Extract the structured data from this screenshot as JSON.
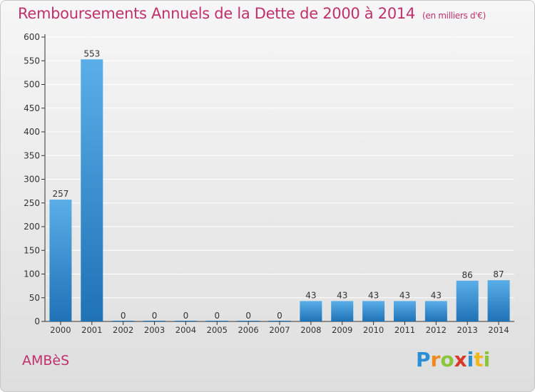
{
  "title": "Remboursements Annuels de la Dette de 2000 à 2014",
  "unit": "(en milliers d'€)",
  "commune": "AMBèS",
  "logo": {
    "text": "Proxiti",
    "letters": [
      {
        "char": "P",
        "color": "#2a8fd6"
      },
      {
        "char": "r",
        "color": "#f08a1c"
      },
      {
        "char": "o",
        "color": "#8cc43c"
      },
      {
        "char": "x",
        "color": "#d83a2a"
      },
      {
        "char": "i",
        "color": "#2a8fd6"
      },
      {
        "char": "t",
        "color": "#f0b81c"
      },
      {
        "char": "i",
        "color": "#8cc43c"
      }
    ]
  },
  "colors": {
    "title": "#c0306a",
    "bar_light": "#5aaee8",
    "bar_dark": "#1e72b6",
    "grid": "#ffffff",
    "axis": "#333333"
  },
  "chart_data": {
    "type": "bar",
    "categories": [
      "2000",
      "2001",
      "2002",
      "2003",
      "2004",
      "2005",
      "2006",
      "2007",
      "2008",
      "2009",
      "2010",
      "2011",
      "2012",
      "2013",
      "2014"
    ],
    "values": [
      257,
      553,
      0,
      0,
      0,
      0,
      0,
      0,
      43,
      43,
      43,
      43,
      43,
      86,
      87
    ],
    "data_labels": [
      "257",
      "553",
      "0",
      "0",
      "0",
      "0",
      "0",
      "0",
      "43",
      "43",
      "43",
      "43",
      "43",
      "86",
      "87"
    ],
    "yticks": [
      0,
      50,
      100,
      150,
      200,
      250,
      300,
      350,
      400,
      450,
      500,
      550,
      600
    ],
    "ylim": [
      0,
      600
    ],
    "grid": true
  }
}
